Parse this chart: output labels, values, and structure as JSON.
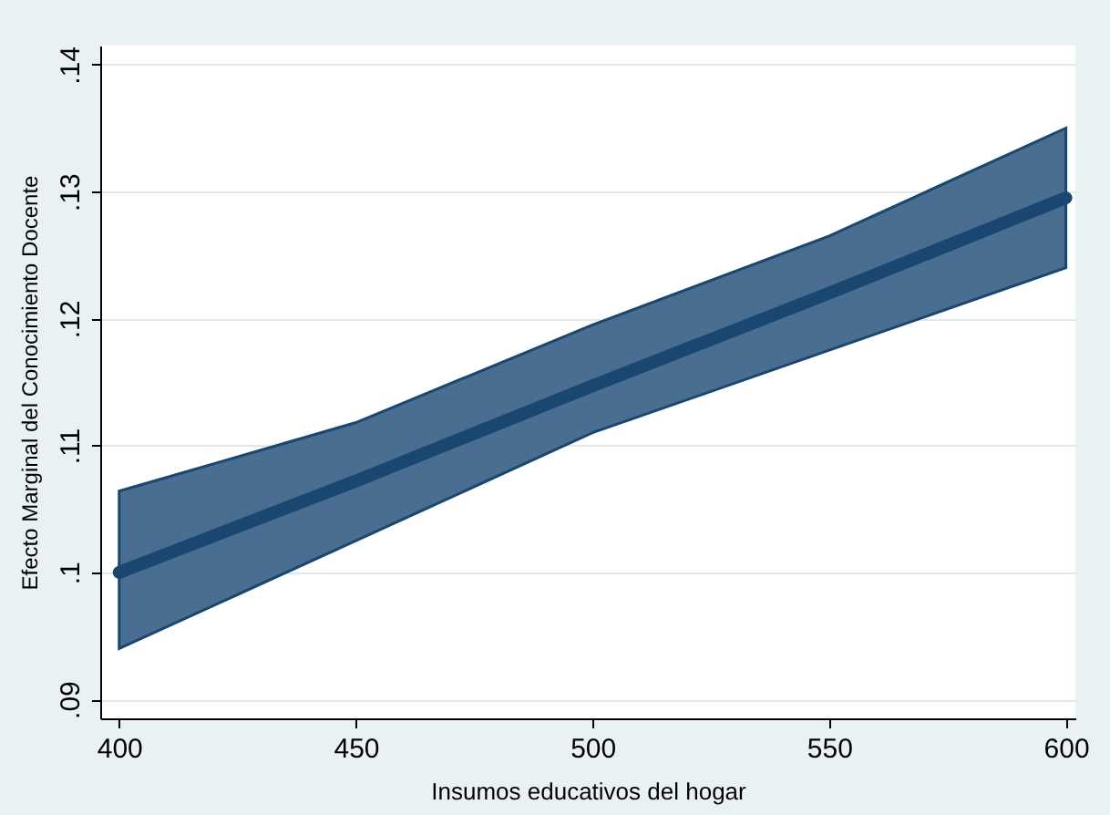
{
  "chart_data": {
    "type": "line",
    "xlabel": "Insumos educativos del hogar",
    "ylabel": "Efecto Marginal del Conocimiento Docente",
    "x": [
      400,
      450,
      500,
      550,
      600
    ],
    "series": [
      {
        "color": "#1a476f",
        "values": [
          0.1,
          0.1072,
          0.1147,
          0.122,
          0.1295
        ],
        "lower": [
          0.094,
          0.1025,
          0.111,
          0.1175,
          0.124
        ],
        "upper": [
          0.1064,
          0.1118,
          0.1195,
          0.1265,
          0.135
        ]
      }
    ],
    "xlim": [
      396,
      602
    ],
    "xticks": [
      400,
      450,
      500,
      550,
      600
    ],
    "ylim": [
      0.0885,
      0.1415
    ],
    "yticks": [
      {
        "value": 0.09,
        "label": ".09"
      },
      {
        "value": 0.1,
        "label": ".1"
      },
      {
        "value": 0.11,
        "label": ".11"
      },
      {
        "value": 0.12,
        "label": ".12"
      },
      {
        "value": 0.13,
        "label": ".13"
      },
      {
        "value": 0.14,
        "label": ".14"
      }
    ],
    "grid": "y",
    "line_style": "solid"
  }
}
